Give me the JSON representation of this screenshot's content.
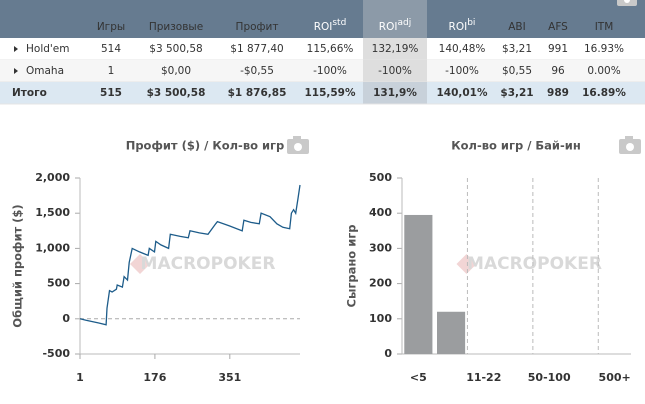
{
  "table": {
    "headers": [
      "Игры",
      "Призовые",
      "Профит",
      {
        "text": "ROI",
        "sup": "std"
      },
      {
        "text": "ROI",
        "sup": "adj"
      },
      {
        "text": "ROI",
        "sup": "bi"
      },
      "ABI",
      "AFS",
      "ITM"
    ],
    "rows": [
      {
        "label": "Hold'em",
        "cells": [
          "514",
          "$3 500,58",
          "$1 877,40",
          "115,66%",
          "132,19%",
          "140,48%",
          "$3,21",
          "991",
          "16.93%"
        ]
      },
      {
        "label": "Omaha",
        "cells": [
          "1",
          "$0,00",
          "-$0,55",
          "-100%",
          "-100%",
          "-100%",
          "$0,55",
          "96",
          "0.00%"
        ]
      },
      {
        "label": "Итого",
        "cells": [
          "515",
          "$3 500,58",
          "$1 876,85",
          "115,59%",
          "131,9%",
          "140,01%",
          "$3,21",
          "989",
          "16.89%"
        ]
      }
    ],
    "signed_columns": [
      2,
      3,
      4,
      5
    ],
    "highlight_column": 4,
    "positive_color": "#3aa83a",
    "negative_color": "#e02a2a"
  },
  "watermark": "MACROPOKER",
  "chart_data": [
    {
      "type": "line",
      "title": "Профит ($) / Кол-во игр",
      "y_label": "Общий профит ($)",
      "x": [
        1,
        15,
        30,
        45,
        62,
        64,
        70,
        76,
        86,
        88,
        100,
        104,
        112,
        116,
        123,
        140,
        160,
        163,
        175,
        178,
        190,
        208,
        212,
        235,
        254,
        258,
        280,
        300,
        318,
        322,
        350,
        380,
        384,
        400,
        420,
        424,
        445,
        461,
        475,
        491,
        495,
        500,
        505,
        510,
        515
      ],
      "values": [
        0,
        -20,
        -40,
        -60,
        -85,
        150,
        400,
        380,
        420,
        480,
        450,
        600,
        550,
        800,
        1000,
        950,
        900,
        1000,
        950,
        1100,
        1050,
        1000,
        1200,
        1170,
        1150,
        1250,
        1220,
        1200,
        1350,
        1380,
        1320,
        1250,
        1400,
        1370,
        1350,
        1500,
        1450,
        1350,
        1300,
        1280,
        1500,
        1550,
        1500,
        1700,
        1900
      ],
      "color": "#1d5c8a",
      "xlim": [
        1,
        515
      ],
      "xticks": [
        1,
        176,
        351
      ],
      "ylim": [
        -500,
        2000
      ],
      "yticks": [
        {
          "value": 2000,
          "label": "2,000"
        },
        {
          "value": 1500,
          "label": "1,500"
        },
        {
          "value": 1000,
          "label": "1,000"
        },
        500,
        0,
        -500
      ],
      "zero_line": true
    },
    {
      "type": "bar",
      "title": "Кол-во игр / Бай-ин",
      "y_label": "Сыграно игр",
      "categories": [
        "<5",
        null,
        "11-22",
        null,
        "50-100",
        null,
        "500+"
      ],
      "values": [
        395,
        120,
        0,
        0,
        0,
        0,
        0
      ],
      "color": "#9b9d9f",
      "ylim": [
        0,
        500
      ],
      "yticks": [
        0,
        100,
        200,
        300,
        400,
        500
      ],
      "grid": true
    }
  ]
}
